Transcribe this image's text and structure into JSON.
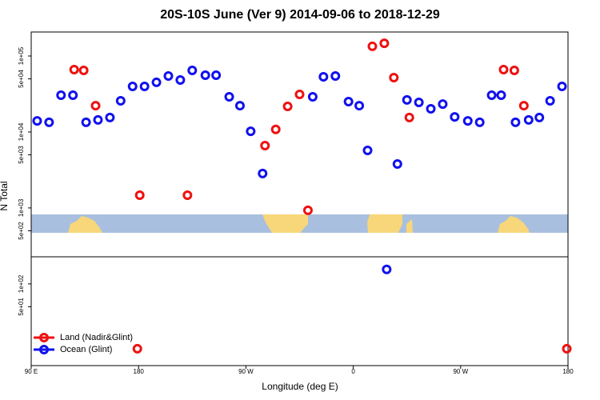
{
  "chart_data": {
    "type": "scatter",
    "title": "20S-10S June (Ver 9)   2014-09-06 to 2018-12-29",
    "xlabel": "Longitude (deg E)",
    "ylabel": "N Total",
    "xlim": [
      90,
      540
    ],
    "ylim": [
      8.4,
      207000
    ],
    "ylog": true,
    "legend": "lower left",
    "xticks": [
      {
        "value": 90,
        "label": "90 E"
      },
      {
        "value": 180,
        "label": "180"
      },
      {
        "value": 270,
        "label": "90 W"
      },
      {
        "value": 360,
        "label": "0"
      },
      {
        "value": 450,
        "label": "90 W"
      },
      {
        "value": 540,
        "label": "180"
      }
    ],
    "yticks": [
      {
        "value": 100000,
        "label": "1e+05"
      },
      {
        "value": 50000,
        "label": "5e+04"
      },
      {
        "value": 10000,
        "label": "1e+04"
      },
      {
        "value": 5000,
        "label": "5e+03"
      },
      {
        "value": 1000,
        "label": "1e+03"
      },
      {
        "value": 500,
        "label": "5e+02"
      },
      {
        "value": 100,
        "label": "1e+02"
      },
      {
        "value": 50,
        "label": "5e+01"
      }
    ],
    "series": [
      {
        "name": "Land (Nadir&Glint)",
        "color": "#ee1111",
        "x": [
          126,
          134,
          144,
          179,
          181,
          221,
          286,
          295,
          305,
          315,
          322,
          376,
          386,
          394,
          407,
          486,
          495,
          503,
          539
        ],
        "values": [
          66200,
          64700,
          22200,
          14,
          1470,
          1470,
          6620,
          10800,
          21700,
          31200,
          930,
          134000,
          147000,
          52000,
          15500,
          66200,
          64700,
          22200,
          14
        ]
      },
      {
        "name": "Ocean (Glint)",
        "color": "#1111ee",
        "x": [
          95,
          105,
          115,
          125,
          136,
          146,
          156,
          165,
          175,
          185,
          195,
          205,
          215,
          225,
          236,
          245,
          256,
          265,
          274,
          284,
          326,
          335,
          345,
          356,
          365,
          372,
          388,
          397,
          405,
          415,
          425,
          435,
          445,
          456,
          466,
          476,
          484,
          496,
          507,
          516,
          525,
          535
        ],
        "values": [
          14000,
          13400,
          30500,
          30500,
          13400,
          14400,
          15500,
          25700,
          39800,
          39800,
          45000,
          54500,
          48300,
          64700,
          55900,
          55900,
          29000,
          22200,
          10200,
          2840,
          29000,
          53200,
          54500,
          25100,
          22200,
          5720,
          155,
          3790,
          26400,
          24500,
          20200,
          23300,
          15800,
          14000,
          13400,
          30500,
          30500,
          13400,
          14400,
          15500,
          25700,
          39800
        ]
      }
    ]
  }
}
